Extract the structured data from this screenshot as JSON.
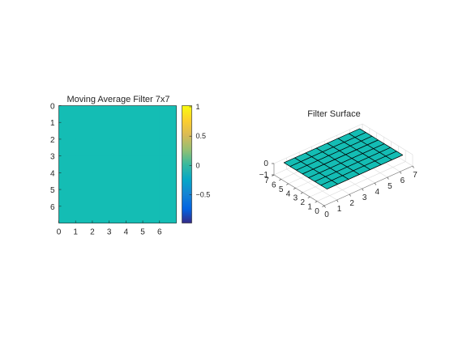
{
  "figure": {
    "background": "#ffffff",
    "text_color": "#262626",
    "surface_color": "#14bdb4",
    "edge_color": "#000000",
    "axis_color": "#262626",
    "grid_color": "#dcdcdc"
  },
  "chart_data": [
    {
      "type": "heatmap",
      "title": "Moving Average Filter 7x7",
      "x_ticks": [
        "0",
        "1",
        "2",
        "3",
        "4",
        "5",
        "6"
      ],
      "y_ticks": [
        "0",
        "1",
        "2",
        "3",
        "4",
        "5",
        "6"
      ],
      "xlim": [
        0,
        7
      ],
      "ylim": [
        0,
        7
      ],
      "y_direction": "reversed",
      "values": [
        [
          0.0204,
          0.0204,
          0.0204,
          0.0204,
          0.0204,
          0.0204,
          0.0204
        ],
        [
          0.0204,
          0.0204,
          0.0204,
          0.0204,
          0.0204,
          0.0204,
          0.0204
        ],
        [
          0.0204,
          0.0204,
          0.0204,
          0.0204,
          0.0204,
          0.0204,
          0.0204
        ],
        [
          0.0204,
          0.0204,
          0.0204,
          0.0204,
          0.0204,
          0.0204,
          0.0204
        ],
        [
          0.0204,
          0.0204,
          0.0204,
          0.0204,
          0.0204,
          0.0204,
          0.0204
        ],
        [
          0.0204,
          0.0204,
          0.0204,
          0.0204,
          0.0204,
          0.0204,
          0.0204
        ],
        [
          0.0204,
          0.0204,
          0.0204,
          0.0204,
          0.0204,
          0.0204,
          0.0204
        ]
      ],
      "colorbar": {
        "ticks": [
          {
            "value": 1,
            "label": "1"
          },
          {
            "value": 0.5,
            "label": "0.5"
          },
          {
            "value": 0,
            "label": "0"
          },
          {
            "value": -0.5,
            "label": "−0.5"
          }
        ],
        "clim": [
          -0.98,
          1.02
        ],
        "colormap": "parula"
      }
    },
    {
      "type": "surface",
      "title": "Filter Surface",
      "x_ticks": [
        "0",
        "1",
        "2",
        "3",
        "4",
        "5",
        "6",
        "7"
      ],
      "y_ticks": [
        "0",
        "1",
        "2",
        "3",
        "4",
        "5",
        "6",
        "7"
      ],
      "z_ticks": [
        "0",
        "−1"
      ],
      "xlim": [
        0,
        7
      ],
      "ylim": [
        0,
        7
      ],
      "zlim": [
        -1,
        0
      ],
      "grid": true,
      "z_value": 0.0204,
      "grid_size": [
        7,
        7
      ]
    }
  ]
}
